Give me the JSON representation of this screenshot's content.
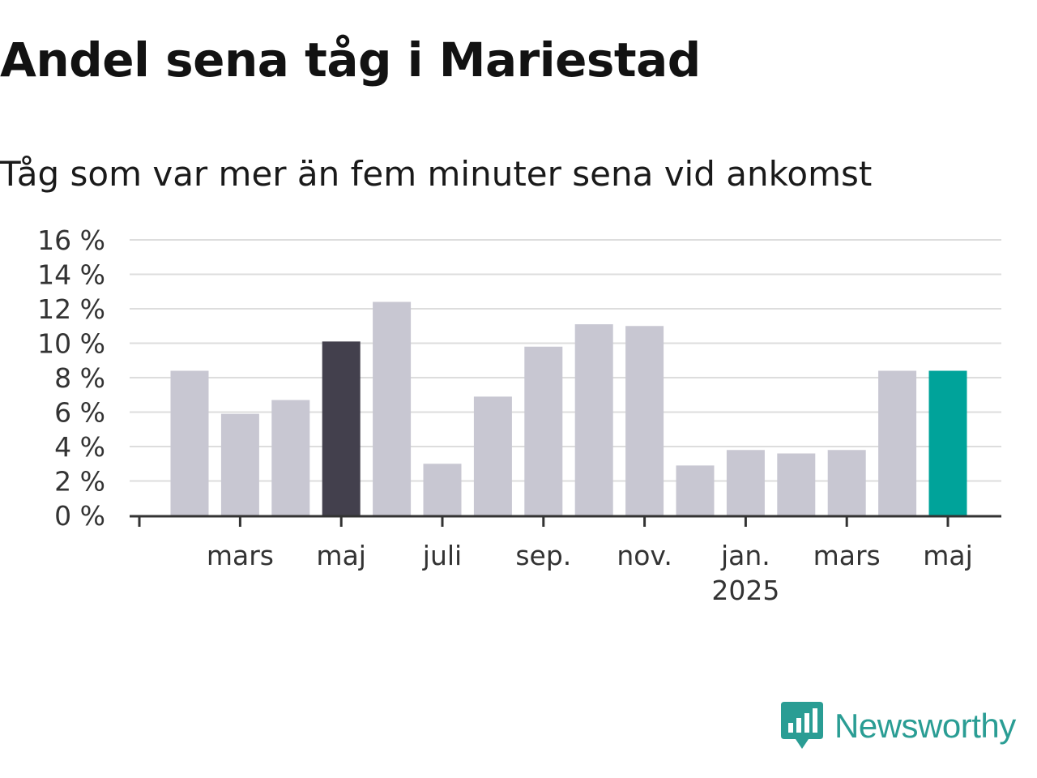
{
  "chart_data": {
    "type": "bar",
    "title": "Andel sena tåg i Mariestad",
    "subtitle": "Tåg som var mer än fem minuter sena vid ankomst",
    "ylabel": "",
    "xlabel": "",
    "ylim": [
      0,
      16
    ],
    "yticks": [
      "0 %",
      "2 %",
      "4 %",
      "6 %",
      "8 %",
      "10 %",
      "12 %",
      "14 %",
      "16 %"
    ],
    "categories": [
      "2024-02",
      "2024-03",
      "2024-04",
      "2024-05",
      "2024-06",
      "2024-07",
      "2024-08",
      "2024-09",
      "2024-10",
      "2024-11",
      "2024-12",
      "2025-01",
      "2025-02",
      "2025-03",
      "2025-04",
      "2025-05"
    ],
    "values": [
      8.4,
      5.9,
      6.7,
      10.1,
      12.4,
      3.0,
      6.9,
      9.8,
      11.1,
      11.0,
      2.9,
      3.8,
      3.6,
      3.8,
      8.4,
      8.4
    ],
    "xtick_labels": [
      {
        "category": "2024-03",
        "label": "mars"
      },
      {
        "category": "2024-05",
        "label": "maj"
      },
      {
        "category": "2024-07",
        "label": "juli"
      },
      {
        "category": "2024-09",
        "label": "sep."
      },
      {
        "category": "2024-11",
        "label": "nov."
      },
      {
        "category": "2025-01",
        "label": "jan.",
        "sublabel": "2025"
      },
      {
        "category": "2025-03",
        "label": "mars"
      },
      {
        "category": "2025-05",
        "label": "maj"
      }
    ],
    "highlight": {
      "2024-05": "dark",
      "2025-05": "accent"
    },
    "colors": {
      "default": "#c8c7d2",
      "dark": "#43404d",
      "accent": "#00a39a",
      "grid": "#dddddd",
      "axis": "#333333"
    },
    "grid": true
  },
  "branding": {
    "name": "Newsworthy",
    "logo_icon": "newsworthy-logo-icon",
    "color": "#2a9d94"
  }
}
